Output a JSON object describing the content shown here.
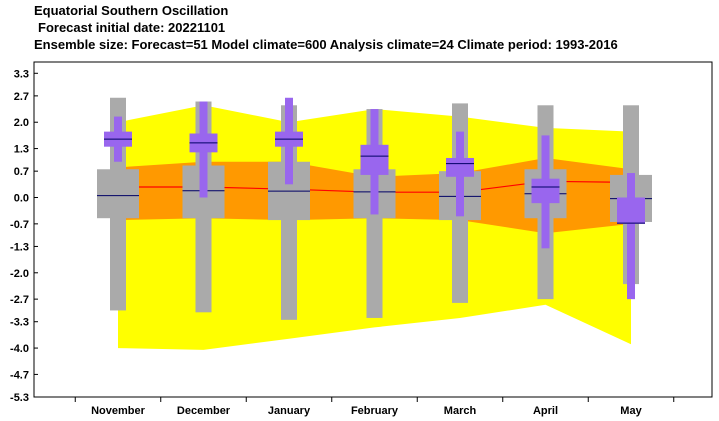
{
  "header": {
    "line1": "Equatorial Southern Oscillation",
    "line2": "Forecast initial date: 20221101",
    "line3": "Ensemble size: Forecast=51 Model climate=600 Analysis climate=24   Climate period: 1993-2016"
  },
  "colors": {
    "climate_outer": "#ffff00",
    "climate_inner": "#ff9900",
    "analysis_line": "#ff0000",
    "model_box": "#aaaaaa",
    "forecast_box": "#9966ee",
    "median": "#000066"
  },
  "chart_data": {
    "type": "box",
    "title": "Equatorial Southern Oscillation",
    "ylim": [
      -5.3,
      3.6
    ],
    "yticks": [
      "3.3",
      "2.7",
      "2.0",
      "1.3",
      "0.7",
      "0.0",
      "-0.7",
      "-1.3",
      "-2.0",
      "-2.7",
      "-3.3",
      "-4.0",
      "-4.7",
      "-5.3"
    ],
    "categories": [
      "November",
      "December",
      "January",
      "February",
      "March",
      "April",
      "May"
    ],
    "analysis_climate": {
      "outer_upper": [
        2.0,
        2.45,
        2.0,
        2.35,
        2.15,
        1.85,
        1.75
      ],
      "outer_lower": [
        -4.0,
        -4.05,
        -3.75,
        -3.45,
        -3.2,
        -2.85,
        -3.9
      ],
      "inner_upper": [
        0.8,
        0.95,
        0.95,
        0.55,
        0.65,
        1.05,
        0.75
      ],
      "inner_lower": [
        -0.6,
        -0.55,
        -0.6,
        -0.55,
        -0.6,
        -0.95,
        -0.7
      ],
      "mean": [
        0.28,
        0.28,
        0.22,
        0.14,
        0.14,
        0.43,
        0.4
      ]
    },
    "model_climate": {
      "min": [
        -3.0,
        -3.05,
        -3.25,
        -3.2,
        -2.8,
        -2.7,
        -2.3
      ],
      "p10": [
        -0.55,
        -0.55,
        -0.6,
        -0.55,
        -0.6,
        -0.55,
        -0.65
      ],
      "median": [
        0.05,
        0.18,
        0.17,
        0.15,
        0.03,
        0.1,
        -0.03
      ],
      "p90": [
        0.75,
        0.85,
        0.95,
        0.75,
        0.7,
        0.75,
        0.6
      ],
      "max": [
        2.65,
        2.55,
        2.45,
        2.35,
        2.5,
        2.45,
        2.45
      ]
    },
    "forecast": {
      "min": [
        0.95,
        0.0,
        0.35,
        -0.45,
        -0.5,
        -1.35,
        -2.7
      ],
      "p25": [
        1.35,
        1.2,
        1.35,
        0.6,
        0.55,
        -0.15,
        -0.7
      ],
      "median": [
        1.55,
        1.45,
        1.55,
        1.1,
        0.9,
        0.28,
        -0.68
      ],
      "p75": [
        1.75,
        1.7,
        1.75,
        1.4,
        1.05,
        0.5,
        0.0
      ],
      "max": [
        2.15,
        2.55,
        2.65,
        2.35,
        1.75,
        1.65,
        0.65
      ]
    }
  }
}
